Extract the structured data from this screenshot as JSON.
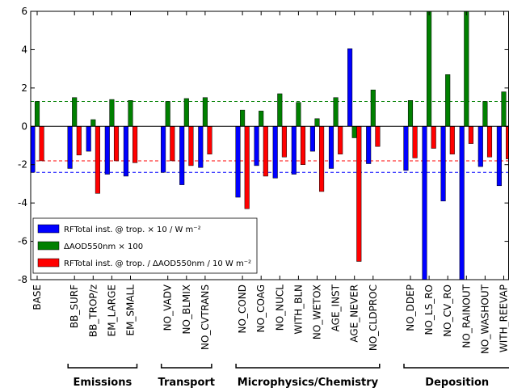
{
  "chart_data": {
    "type": "bar",
    "categories": [
      "BASE",
      null,
      "BB_SURF",
      "BB_TROP/z",
      "EM_LARGE",
      "EM_SMALL",
      null,
      "NO_VADV",
      "NO_BLMIX",
      "NO_CVTRANS",
      null,
      "NO_COND",
      "NO_COAG",
      "NO_NUCL",
      "WITH_BLN",
      "NO_WETOX",
      "AGE_INST",
      "AGE_NEVER",
      "NO_CLDPROC",
      null,
      "NO_DDEP",
      "NO_LS_RO",
      "NO_CV_RO",
      "NO_RAINOUT",
      "NO_WASHOUT",
      "WITH_REEVAP"
    ],
    "series": [
      {
        "name": "RFTotal inst. @ trop. × 10 / W m⁻²",
        "color": "#0000ff",
        "values": [
          -2.4,
          null,
          -2.2,
          -1.3,
          -2.5,
          -2.6,
          null,
          -2.4,
          -3.05,
          -2.15,
          null,
          -3.7,
          -2.05,
          -2.7,
          -2.5,
          -1.3,
          -2.2,
          4.05,
          -1.95,
          null,
          -2.3,
          -8.5,
          -3.9,
          -8.5,
          -2.1,
          -3.1
        ]
      },
      {
        "name": "ΔAOD550nm × 100",
        "color": "#008000",
        "values": [
          1.3,
          null,
          1.5,
          0.35,
          1.4,
          1.35,
          null,
          1.3,
          1.45,
          1.5,
          null,
          0.85,
          0.8,
          1.7,
          1.25,
          0.4,
          1.5,
          -0.6,
          1.9,
          null,
          1.35,
          6.5,
          2.7,
          6.5,
          1.3,
          1.8
        ]
      },
      {
        "name": "RFTotal inst. @ trop. / ΔAOD550nm / 10 W m⁻²",
        "color": "#ff0000",
        "values": [
          -1.8,
          null,
          -1.5,
          -3.5,
          -1.8,
          -1.9,
          null,
          -1.8,
          -2.05,
          -1.45,
          null,
          -4.3,
          -2.6,
          -1.6,
          -2.0,
          -3.4,
          -1.45,
          -7.05,
          -1.05,
          null,
          -1.65,
          -1.15,
          -1.45,
          -0.9,
          -1.6,
          -1.7
        ]
      }
    ],
    "groups": [
      "Emissions",
      "Transport",
      "Microphysics/Chemistry",
      "Deposition"
    ],
    "ylim": [
      -8,
      6
    ],
    "yticks": [
      -8,
      -6,
      -4,
      -2,
      0,
      2,
      4,
      6
    ],
    "grid": false,
    "legend": "lower left"
  }
}
